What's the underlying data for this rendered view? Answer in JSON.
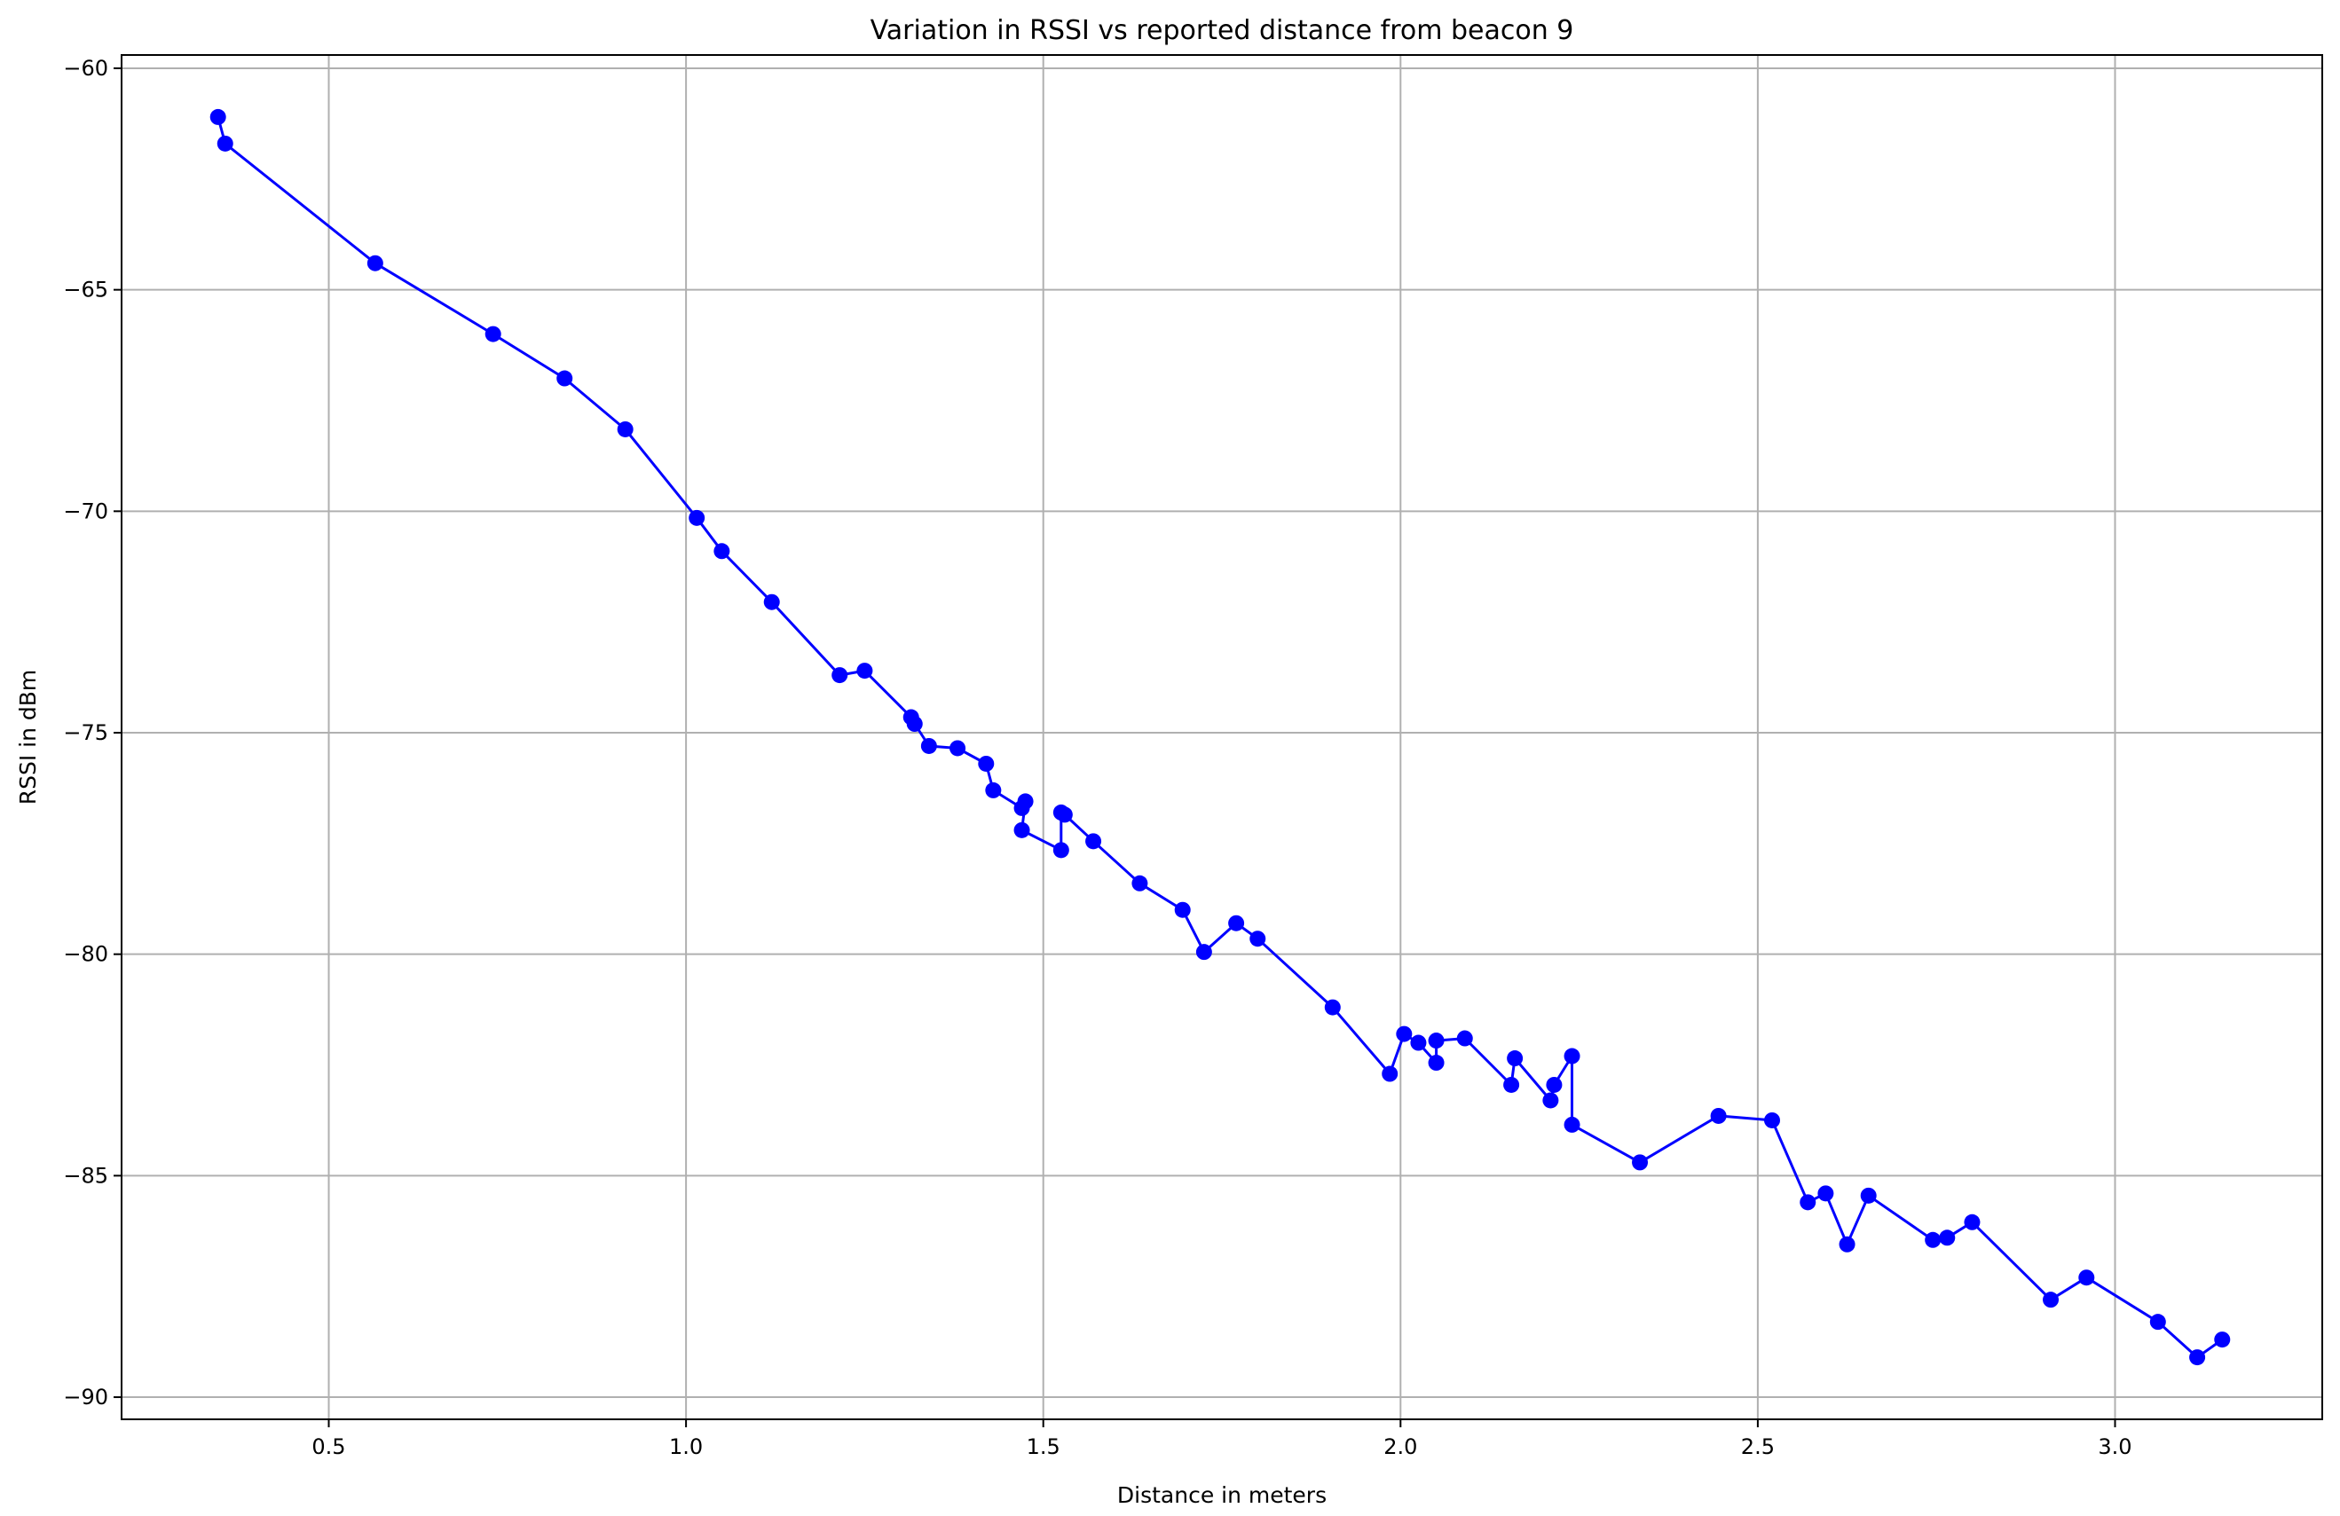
{
  "chart_data": {
    "type": "line",
    "title": "Variation in RSSI vs reported distance from beacon 9",
    "xlabel": "Distance in meters",
    "ylabel": "RSSI in dBm",
    "xlim": [
      0.21,
      3.29
    ],
    "ylim": [
      -90.5,
      -59.7
    ],
    "xticks": [
      0.5,
      1.0,
      1.5,
      2.0,
      2.5,
      3.0
    ],
    "xtick_labels": [
      "0.5",
      "1.0",
      "1.5",
      "2.0",
      "2.5",
      "3.0"
    ],
    "yticks": [
      -60,
      -65,
      -70,
      -75,
      -80,
      -85,
      -90
    ],
    "ytick_labels": [
      "−60",
      "−65",
      "−70",
      "−75",
      "−80",
      "−85",
      "−90"
    ],
    "grid": true,
    "series": [
      {
        "color": "#0000ff",
        "marker": "circle",
        "points": [
          [
            0.345,
            -61.1
          ],
          [
            0.355,
            -61.7
          ],
          [
            0.565,
            -64.4
          ],
          [
            0.73,
            -66.0
          ],
          [
            0.83,
            -67.0
          ],
          [
            0.915,
            -68.15
          ],
          [
            1.015,
            -70.15
          ],
          [
            1.05,
            -70.9
          ],
          [
            1.12,
            -72.05
          ],
          [
            1.215,
            -73.7
          ],
          [
            1.25,
            -73.6
          ],
          [
            1.315,
            -74.65
          ],
          [
            1.32,
            -74.8
          ],
          [
            1.34,
            -75.3
          ],
          [
            1.38,
            -75.35
          ],
          [
            1.42,
            -75.7
          ],
          [
            1.43,
            -76.3
          ],
          [
            1.47,
            -76.7
          ],
          [
            1.475,
            -76.55
          ],
          [
            1.47,
            -77.2
          ],
          [
            1.525,
            -77.65
          ],
          [
            1.525,
            -76.8
          ],
          [
            1.53,
            -76.85
          ],
          [
            1.57,
            -77.45
          ],
          [
            1.635,
            -78.4
          ],
          [
            1.695,
            -79.0
          ],
          [
            1.725,
            -79.95
          ],
          [
            1.77,
            -79.3
          ],
          [
            1.8,
            -79.65
          ],
          [
            1.905,
            -81.2
          ],
          [
            1.985,
            -82.7
          ],
          [
            2.005,
            -81.8
          ],
          [
            2.025,
            -82.0
          ],
          [
            2.05,
            -82.45
          ],
          [
            2.05,
            -81.95
          ],
          [
            2.09,
            -81.9
          ],
          [
            2.155,
            -82.95
          ],
          [
            2.16,
            -82.35
          ],
          [
            2.21,
            -83.3
          ],
          [
            2.215,
            -82.95
          ],
          [
            2.24,
            -82.3
          ],
          [
            2.24,
            -83.85
          ],
          [
            2.335,
            -84.7
          ],
          [
            2.445,
            -83.65
          ],
          [
            2.52,
            -83.75
          ],
          [
            2.57,
            -85.6
          ],
          [
            2.595,
            -85.4
          ],
          [
            2.625,
            -86.55
          ],
          [
            2.655,
            -85.45
          ],
          [
            2.745,
            -86.45
          ],
          [
            2.765,
            -86.4
          ],
          [
            2.8,
            -86.05
          ],
          [
            2.91,
            -87.8
          ],
          [
            2.96,
            -87.3
          ],
          [
            3.06,
            -88.3
          ],
          [
            3.115,
            -89.1
          ],
          [
            3.15,
            -88.7
          ]
        ]
      }
    ]
  }
}
